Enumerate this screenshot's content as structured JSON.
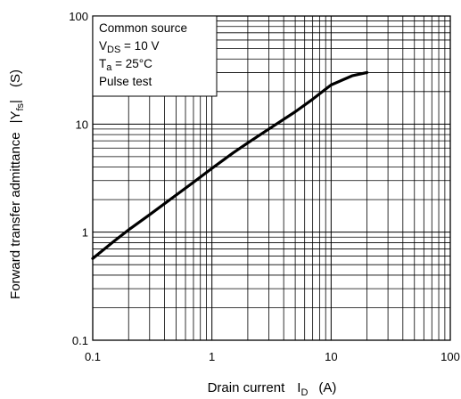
{
  "chart_data": {
    "type": "line",
    "x_scale": "log",
    "y_scale": "log",
    "xlim": [
      0.1,
      100
    ],
    "ylim": [
      0.1,
      100
    ],
    "grid": true,
    "x_ticks": [
      "0.1",
      "1",
      "10",
      "100"
    ],
    "y_ticks": [
      "0.1",
      "1",
      "10",
      "100"
    ],
    "xlabel": {
      "main": "Drain current",
      "symbol": "I",
      "subscript": "D",
      "unit": "(A)"
    },
    "ylabel": {
      "main": "Forward transfer admittance",
      "symbol": "|Y",
      "subscript": "fs",
      "close": "|",
      "unit": "(S)"
    },
    "legend": {
      "placement": "top-left",
      "line1": "Common source",
      "line2": {
        "symbol": "V",
        "subscript": "DS",
        "rest": " = 10 V"
      },
      "line3": {
        "symbol": "T",
        "subscript": "a",
        "rest": " = 25°C"
      },
      "line4": "Pulse test"
    },
    "series": [
      {
        "color": "#000000",
        "x": [
          0.1,
          0.15,
          0.2,
          0.3,
          0.5,
          0.7,
          1,
          1.5,
          2,
          3,
          5,
          7,
          10,
          15,
          20
        ],
        "y": [
          0.57,
          0.82,
          1.05,
          1.45,
          2.2,
          2.9,
          3.9,
          5.4,
          6.7,
          9.0,
          13.0,
          17.0,
          23.0,
          28.0,
          30.0
        ]
      }
    ]
  }
}
